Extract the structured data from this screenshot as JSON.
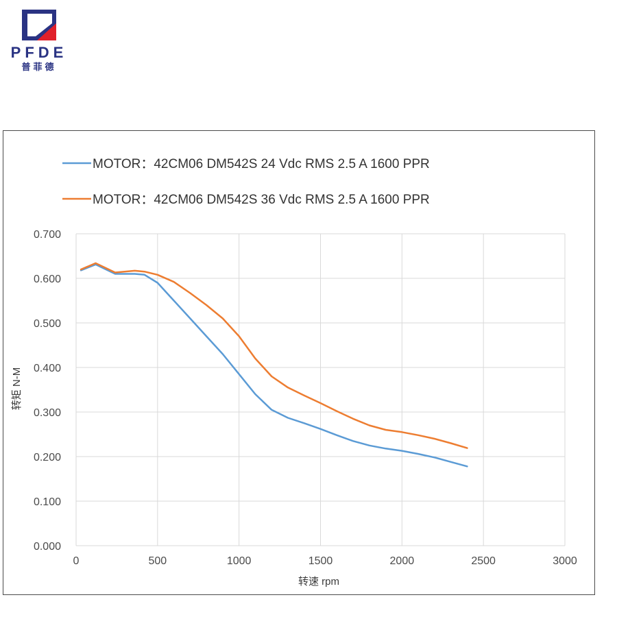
{
  "brand": {
    "name": "PFDE",
    "chinese_name": "普菲德",
    "colors": {
      "navy": "#2a3383",
      "red": "#e0202a"
    }
  },
  "chart_data": {
    "type": "line",
    "xlabel": "转速 rpm",
    "ylabel": "转矩 N-M",
    "xlim": [
      0,
      3000
    ],
    "ylim": [
      0,
      0.7
    ],
    "xticks": [
      "0",
      "500",
      "1000",
      "1500",
      "2000",
      "2500",
      "3000"
    ],
    "yticks": [
      "0.000",
      "0.100",
      "0.200",
      "0.300",
      "0.400",
      "0.500",
      "0.600",
      "0.700"
    ],
    "grid": true,
    "legend_position": "top",
    "series": [
      {
        "name": "MOTOR：42CM06  DM542S 24 Vdc  RMS 2.5 A  1600 PPR",
        "color": "#5b9bd5",
        "x": [
          30,
          120,
          240,
          360,
          420,
          500,
          600,
          700,
          800,
          900,
          1000,
          1100,
          1200,
          1300,
          1400,
          1500,
          1600,
          1700,
          1800,
          1900,
          2000,
          2100,
          2200,
          2300,
          2400
        ],
        "y": [
          0.618,
          0.631,
          0.61,
          0.61,
          0.608,
          0.59,
          0.55,
          0.51,
          0.47,
          0.43,
          0.385,
          0.34,
          0.305,
          0.287,
          0.275,
          0.262,
          0.248,
          0.235,
          0.225,
          0.218,
          0.213,
          0.206,
          0.198,
          0.188,
          0.178
        ]
      },
      {
        "name": "MOTOR：42CM06  DM542S 36 Vdc  RMS 2.5 A  1600 PPR",
        "color": "#ed7d31",
        "x": [
          30,
          120,
          240,
          360,
          420,
          500,
          600,
          700,
          800,
          900,
          1000,
          1100,
          1200,
          1300,
          1400,
          1500,
          1600,
          1700,
          1800,
          1900,
          2000,
          2100,
          2200,
          2300,
          2400
        ],
        "y": [
          0.62,
          0.634,
          0.613,
          0.617,
          0.615,
          0.608,
          0.592,
          0.567,
          0.54,
          0.51,
          0.47,
          0.42,
          0.38,
          0.355,
          0.337,
          0.32,
          0.302,
          0.285,
          0.27,
          0.26,
          0.255,
          0.248,
          0.24,
          0.23,
          0.219
        ]
      }
    ]
  }
}
